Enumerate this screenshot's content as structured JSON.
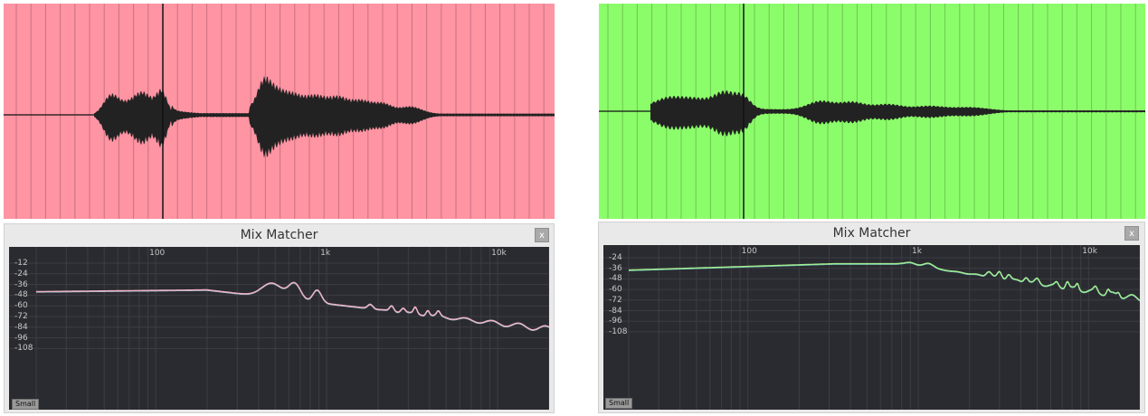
{
  "left": {
    "waveform_bg": "#ff94a3",
    "matcher": {
      "title": "Mix Matcher",
      "close_label": "x",
      "small_label": "Small",
      "x_labels": [
        "100",
        "1k",
        "10k"
      ],
      "y_labels": [
        "-12",
        "-24",
        "-36",
        "-48",
        "-60",
        "-72",
        "-84",
        "-96",
        "-108"
      ],
      "curve_color": "#f3b3c4",
      "curve_color_2": "#8fb6d0"
    }
  },
  "right": {
    "waveform_bg": "#8cfd6a",
    "matcher": {
      "title": "Mix Matcher",
      "close_label": "x",
      "small_label": "Small",
      "x_labels": [
        "100",
        "1k",
        "10k"
      ],
      "y_labels": [
        "-24",
        "-36",
        "-48",
        "-60",
        "-72",
        "-84",
        "-96",
        "-108"
      ],
      "curve_color": "#a5f08e",
      "curve_color_2": "#5fb0b8"
    }
  },
  "colors": {
    "graph_bg": "#2a2b30",
    "grid": "#3c3d43",
    "waveform": "#222222"
  }
}
